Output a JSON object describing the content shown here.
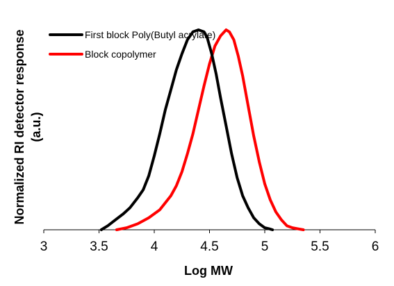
{
  "chart_data": {
    "type": "line",
    "title": "",
    "xlabel": "Log MW",
    "ylabel_lines": [
      "Normalized RI detector response",
      "(a.u.)"
    ],
    "xlim": [
      3,
      6
    ],
    "ylim": [
      0,
      1.08
    ],
    "x_ticks": [
      3,
      3.5,
      4,
      4.5,
      5,
      5.5,
      6
    ],
    "x_tick_labels": [
      "3",
      "3.5",
      "4",
      "4.5",
      "5",
      "5.5",
      "6"
    ],
    "legend_position": "top-left",
    "grid": false,
    "series": [
      {
        "name": "First block Poly(Butyl acrylate)",
        "color": "#000000",
        "x": [
          3.52,
          3.58,
          3.65,
          3.72,
          3.78,
          3.85,
          3.9,
          3.95,
          4.0,
          4.05,
          4.1,
          4.15,
          4.2,
          4.25,
          4.3,
          4.35,
          4.4,
          4.45,
          4.48,
          4.52,
          4.56,
          4.6,
          4.65,
          4.7,
          4.75,
          4.8,
          4.85,
          4.9,
          4.95,
          5.0,
          5.04,
          5.07
        ],
        "y": [
          0.0,
          0.02,
          0.05,
          0.08,
          0.11,
          0.16,
          0.2,
          0.27,
          0.37,
          0.48,
          0.6,
          0.7,
          0.8,
          0.88,
          0.95,
          0.99,
          1.0,
          0.99,
          0.96,
          0.88,
          0.78,
          0.66,
          0.52,
          0.38,
          0.26,
          0.17,
          0.11,
          0.06,
          0.03,
          0.01,
          0.005,
          0.0
        ]
      },
      {
        "name": "Block copolymer",
        "color": "#ff0000",
        "x": [
          3.66,
          3.75,
          3.85,
          3.95,
          4.05,
          4.15,
          4.2,
          4.25,
          4.3,
          4.35,
          4.4,
          4.45,
          4.5,
          4.55,
          4.6,
          4.65,
          4.68,
          4.72,
          4.76,
          4.8,
          4.85,
          4.9,
          4.95,
          5.0,
          5.05,
          5.1,
          5.15,
          5.2,
          5.25,
          5.3,
          5.35
        ],
        "y": [
          0.0,
          0.01,
          0.03,
          0.06,
          0.1,
          0.17,
          0.22,
          0.29,
          0.38,
          0.48,
          0.6,
          0.72,
          0.83,
          0.92,
          0.97,
          1.0,
          0.99,
          0.95,
          0.87,
          0.77,
          0.62,
          0.47,
          0.34,
          0.23,
          0.15,
          0.09,
          0.05,
          0.02,
          0.01,
          0.005,
          0.0
        ]
      }
    ]
  }
}
